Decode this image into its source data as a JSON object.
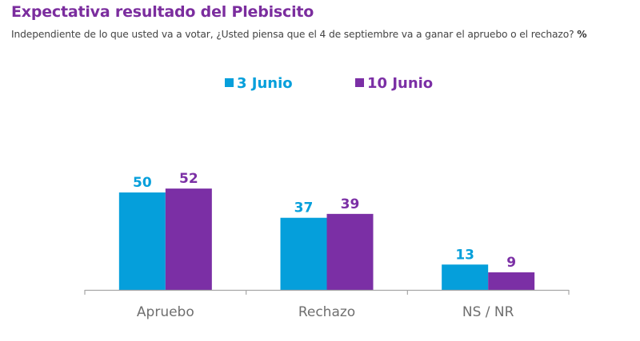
{
  "header": {
    "title": "Expectativa resultado del Plebiscito",
    "subtitle": "Independiente de lo que usted va a votar, ¿Usted piensa que el 4 de septiembre va a ganar el apruebo o el rechazo?",
    "unit": "%"
  },
  "colors": {
    "title": "#7b2d9e",
    "series_1": "#059fdb",
    "series_2": "#7b2fa5",
    "axis": "#a6a6a6"
  },
  "chart_data": {
    "type": "bar",
    "title": "Expectativa resultado del Plebiscito",
    "xlabel": "",
    "ylabel": "%",
    "ylim": [
      0,
      60
    ],
    "grid": false,
    "legend_position": "top-center",
    "categories": [
      "Apruebo",
      "Rechazo",
      "NS / NR"
    ],
    "series": [
      {
        "name": "3 Junio",
        "color": "#059fdb",
        "values": [
          50,
          37,
          13
        ]
      },
      {
        "name": "10 Junio",
        "color": "#7b2fa5",
        "values": [
          52,
          39,
          9
        ]
      }
    ]
  }
}
